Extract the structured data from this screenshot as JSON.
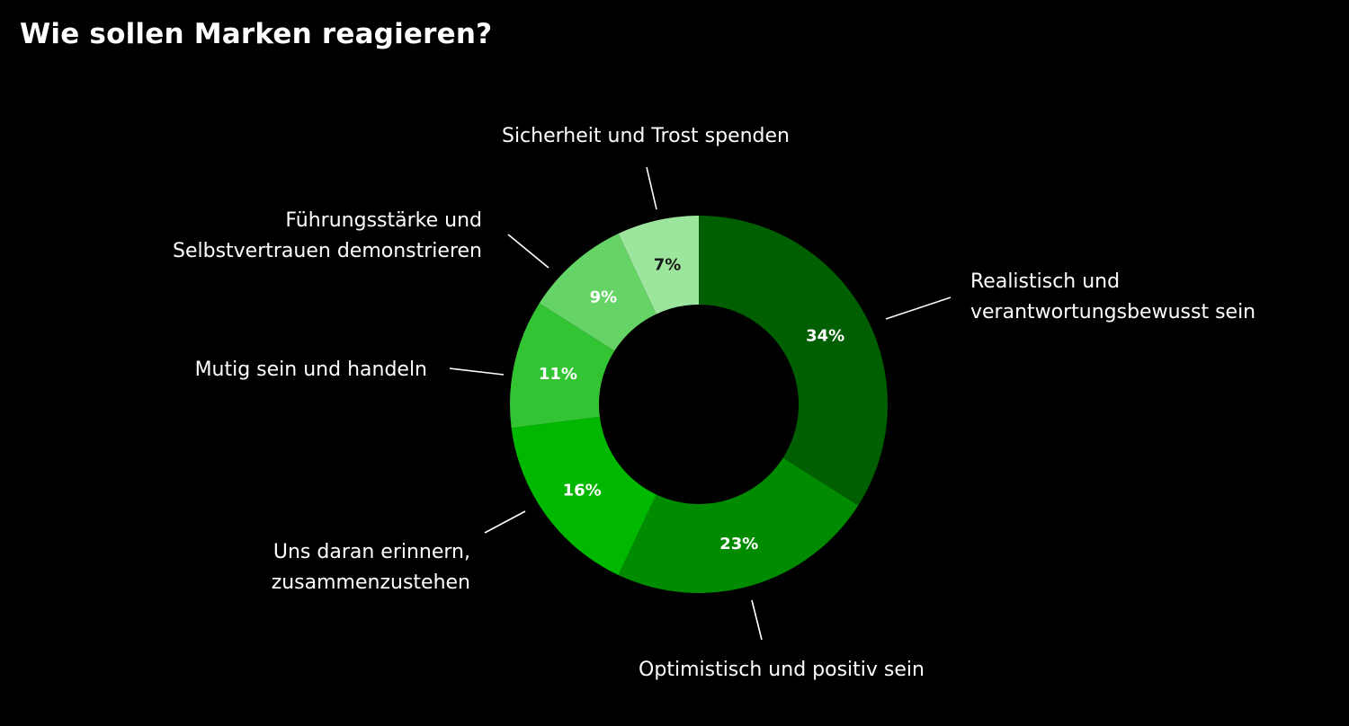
{
  "chart_data": {
    "type": "pie",
    "variant": "donut",
    "title": "Wie sollen Marken reagieren?",
    "categories": [
      "Realistisch und verantwortungsbewusst sein",
      "Optimistisch und positiv sein",
      "Uns daran erinnern, zusammenzustehen",
      "Mutig sein und handeln",
      "Führungsstärke und Selbstvertrauen demonstrieren",
      "Sicherheit und Trost spenden"
    ],
    "values": [
      34,
      23,
      16,
      11,
      9,
      7
    ],
    "value_labels": [
      "34%",
      "23%",
      "16%",
      "11%",
      "9%",
      "7%"
    ],
    "label_lines": [
      [
        "Realistisch und",
        "verantwortungsbewusst sein"
      ],
      [
        "Optimistisch und positiv sein"
      ],
      [
        "Uns daran erinnern,",
        "zusammenzustehen"
      ],
      [
        "Mutig sein und handeln"
      ],
      [
        "Führungsstärke und",
        "Selbstvertrauen demonstrieren"
      ],
      [
        "Sicherheit und Trost spenden"
      ]
    ],
    "colors": [
      "#005f00",
      "#008b00",
      "#00b800",
      "#33c433",
      "#66d366",
      "#9ce59c"
    ],
    "value_label_colors": [
      "#ffffff",
      "#ffffff",
      "#ffffff",
      "#ffffff",
      "#ffffff",
      "#1a1a1a"
    ],
    "start": "top",
    "direction": "clockwise",
    "legend": "none"
  }
}
